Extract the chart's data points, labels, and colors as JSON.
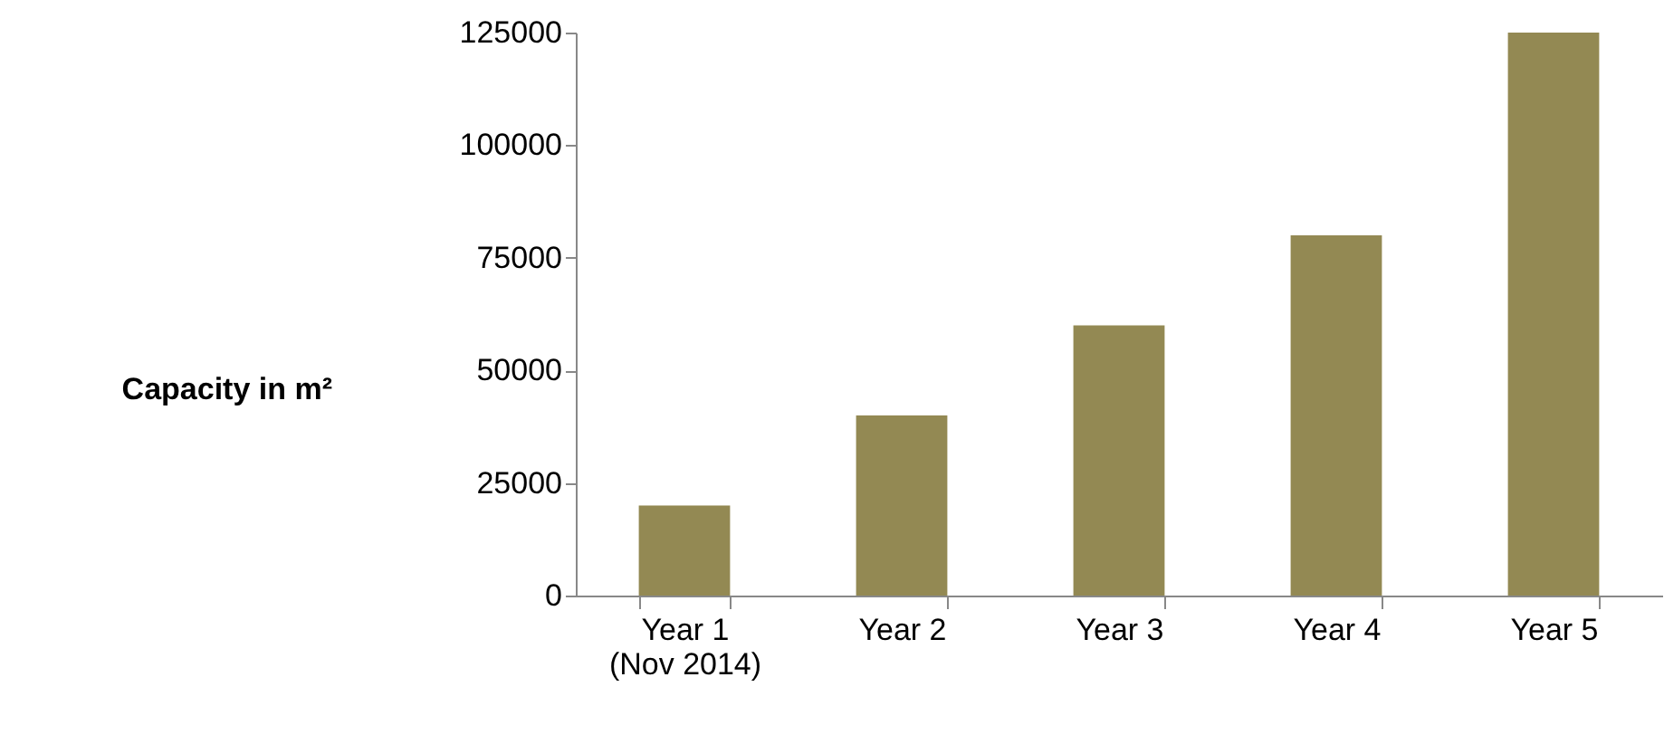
{
  "chart_data": {
    "type": "bar",
    "ylabel": "Capacity in m²",
    "categories": [
      "Year 1\n(Nov 2014)",
      "Year 2",
      "Year 3",
      "Year 4",
      "Year 5"
    ],
    "values": [
      20000,
      40000,
      60000,
      80000,
      125000
    ],
    "color": "#938953",
    "ylim": [
      0,
      125000
    ],
    "yticks": [
      0,
      25000,
      50000,
      75000,
      100000,
      125000
    ],
    "grid": false
  }
}
